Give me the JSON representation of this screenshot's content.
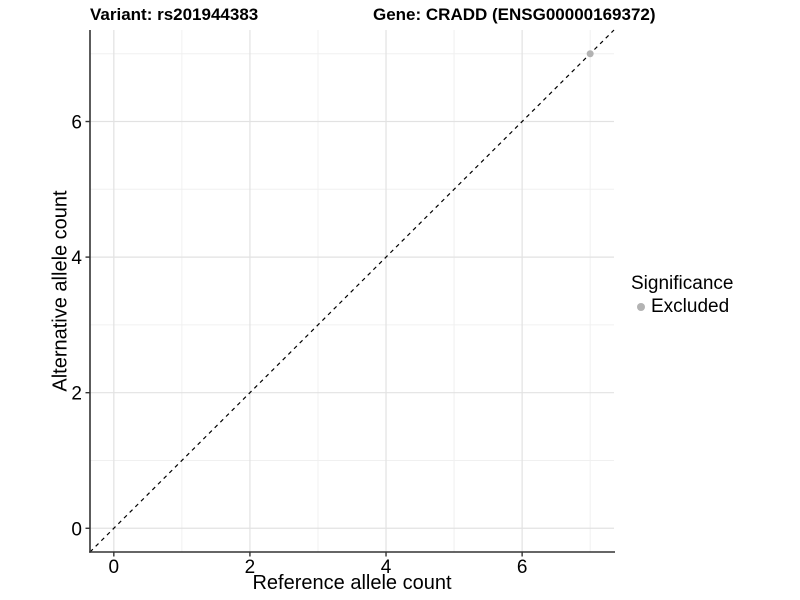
{
  "titles": {
    "variant": "Variant: rs201944383",
    "gene": "Gene: CRADD (ENSG00000169372)"
  },
  "chart_data": {
    "type": "scatter",
    "title_left": "Variant: rs201944383",
    "title_right": "Gene: CRADD (ENSG00000169372)",
    "xlabel": "Reference allele count",
    "ylabel": "Alternative allele count",
    "xlim": [
      -0.35,
      7.35
    ],
    "ylim": [
      -0.35,
      7.35
    ],
    "xticks": [
      0,
      2,
      4,
      6
    ],
    "yticks": [
      0,
      2,
      4,
      6
    ],
    "x_minor_breaks": [
      1,
      3,
      5,
      7
    ],
    "y_minor_breaks": [
      1,
      3,
      5,
      7
    ],
    "grid": "major and minor, light gray on white panel",
    "identity_line": {
      "style": "dashed",
      "from": -0.35,
      "to": 7.35
    },
    "series": [
      {
        "name": "Excluded",
        "color": "#b3b3b3",
        "points": [
          {
            "x": 7,
            "y": 7
          }
        ]
      }
    ],
    "legend": {
      "title": "Significance",
      "position": "right",
      "items": [
        {
          "label": "Excluded",
          "color": "#b3b3b3"
        }
      ]
    },
    "colors": {
      "grid_major": "#e2e2e2",
      "grid_minor": "#f0f0f0",
      "axis_line": "#333333",
      "tick_mark": "#333333",
      "identity_line": "#000000",
      "tick_text": "#000000"
    }
  }
}
